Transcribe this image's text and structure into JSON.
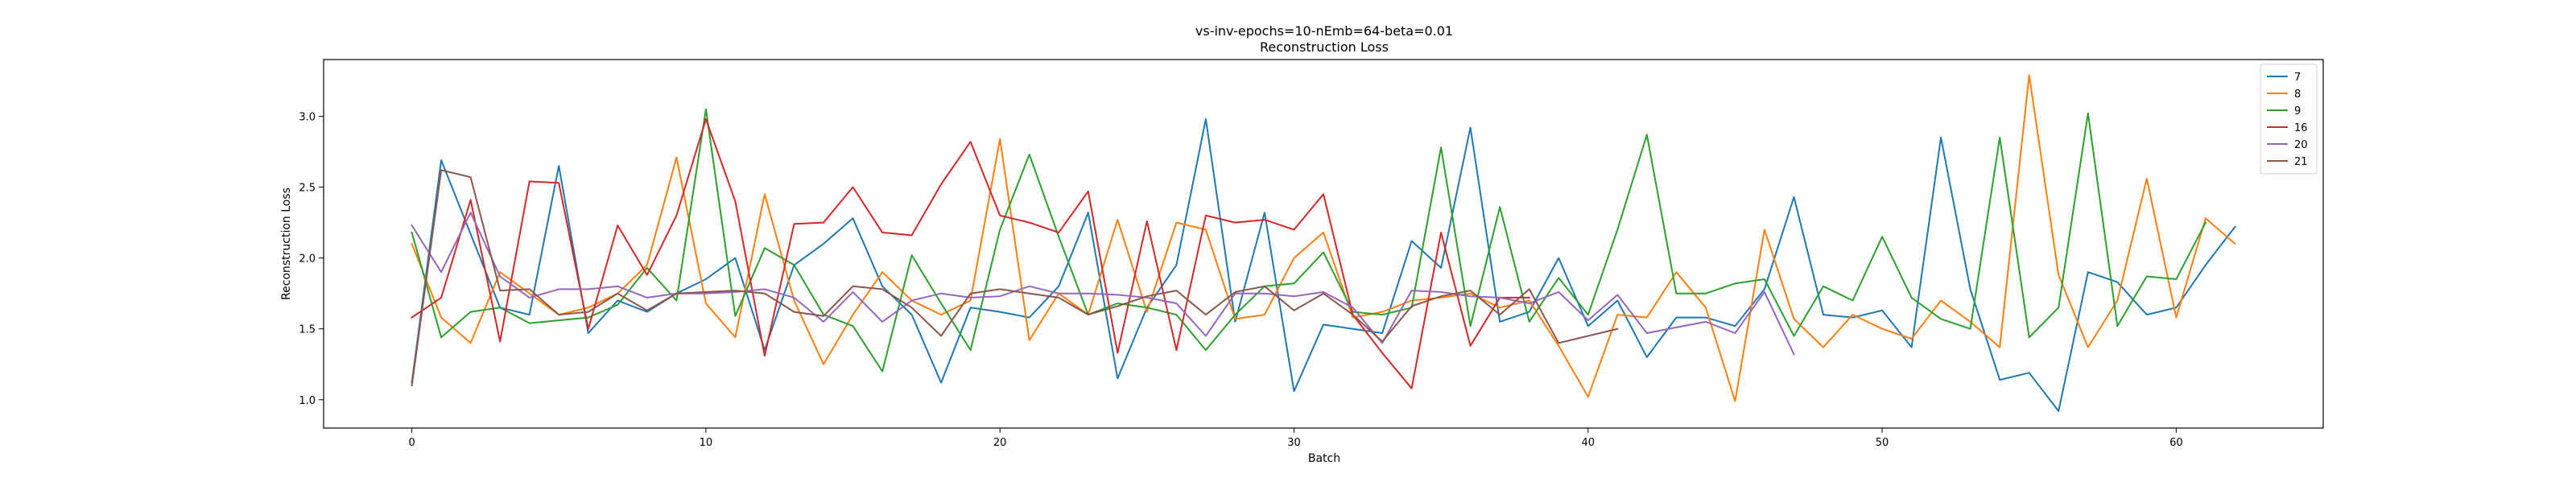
{
  "chart_data": {
    "type": "line",
    "title": "vs-inv-epochs=10-nEmb=64-beta=0.01",
    "subtitle": "Reconstruction Loss",
    "xlabel": "Batch",
    "ylabel": "Reconstruction Loss",
    "xlim": [
      -3,
      65
    ],
    "ylim": [
      0.8,
      3.4
    ],
    "xticks": [
      0,
      10,
      20,
      30,
      40,
      50,
      60
    ],
    "yticks": [
      "1.0",
      "1.5",
      "2.0",
      "2.5",
      "3.0"
    ],
    "grid": false,
    "legend_position": "top-right",
    "series": [
      {
        "name": "7",
        "color": "#1f77b4",
        "values": [
          1.12,
          2.69,
          2.17,
          1.65,
          1.6,
          2.65,
          1.47,
          1.7,
          1.62,
          1.75,
          1.85,
          2.0,
          1.35,
          1.95,
          2.1,
          2.28,
          1.8,
          1.6,
          1.12,
          1.65,
          1.62,
          1.58,
          1.8,
          2.32,
          1.15,
          1.65,
          1.95,
          2.98,
          1.55,
          2.32,
          1.06,
          1.53,
          1.5,
          1.47,
          2.12,
          1.93,
          2.92,
          1.55,
          1.62,
          2.0,
          1.52,
          1.7,
          1.3,
          1.58,
          1.58,
          1.52,
          1.78,
          2.43,
          1.6,
          1.58,
          1.63,
          1.37,
          2.85,
          1.78,
          1.14,
          1.19,
          0.92,
          1.9,
          1.83,
          1.6,
          1.65,
          1.95,
          2.22
        ]
      },
      {
        "name": "8",
        "color": "#ff7f0e",
        "values": [
          2.1,
          1.58,
          1.4,
          1.9,
          1.75,
          1.6,
          1.65,
          1.75,
          1.95,
          2.71,
          1.68,
          1.44,
          2.45,
          1.7,
          1.25,
          1.6,
          1.9,
          1.7,
          1.6,
          1.7,
          2.84,
          1.42,
          1.75,
          1.6,
          2.27,
          1.62,
          2.25,
          2.2,
          1.57,
          1.6,
          2.0,
          2.18,
          1.58,
          1.62,
          1.7,
          1.72,
          1.75,
          1.65,
          1.7,
          1.38,
          1.02,
          1.6,
          1.58,
          1.9,
          1.65,
          0.99,
          2.2,
          1.57,
          1.37,
          1.6,
          1.5,
          1.43,
          1.7,
          1.55,
          1.37,
          3.29,
          1.88,
          1.37,
          1.7,
          2.56,
          1.58,
          2.28,
          2.1
        ]
      },
      {
        "name": "9",
        "color": "#2ca02c",
        "values": [
          2.18,
          1.44,
          1.62,
          1.65,
          1.54,
          1.56,
          1.58,
          1.67,
          1.93,
          1.7,
          3.05,
          1.59,
          2.07,
          1.95,
          1.6,
          1.52,
          1.2,
          2.02,
          1.68,
          1.35,
          2.2,
          2.73,
          2.15,
          1.6,
          1.68,
          1.65,
          1.6,
          1.35,
          1.6,
          1.8,
          1.82,
          2.04,
          1.62,
          1.6,
          1.65,
          2.78,
          1.52,
          2.36,
          1.55,
          1.86,
          1.6,
          2.2,
          2.87,
          1.75,
          1.75,
          1.82,
          1.85,
          1.45,
          1.8,
          1.7,
          2.15,
          1.72,
          1.57,
          1.5,
          2.85,
          1.44,
          1.65,
          3.02,
          1.52,
          1.87,
          1.85,
          2.25
        ]
      },
      {
        "name": "16",
        "color": "#d62728",
        "values": [
          1.58,
          1.72,
          2.41,
          1.41,
          2.54,
          2.53,
          1.5,
          2.23,
          1.88,
          2.3,
          2.98,
          2.4,
          1.31,
          2.24,
          2.25,
          2.5,
          2.18,
          2.16,
          2.52,
          2.82,
          2.3,
          2.25,
          2.18,
          2.47,
          1.33,
          2.26,
          1.35,
          2.3,
          2.25,
          2.27,
          2.2,
          2.45,
          1.6,
          1.33,
          1.08,
          2.18,
          1.38,
          1.72,
          1.72
        ]
      },
      {
        "name": "20",
        "color": "#9467bd",
        "values": [
          2.23,
          1.9,
          2.32,
          1.87,
          1.72,
          1.78,
          1.78,
          1.8,
          1.72,
          1.75,
          1.75,
          1.76,
          1.78,
          1.72,
          1.55,
          1.76,
          1.55,
          1.7,
          1.75,
          1.72,
          1.73,
          1.8,
          1.75,
          1.75,
          1.74,
          1.72,
          1.68,
          1.45,
          1.75,
          1.75,
          1.73,
          1.76,
          1.65,
          1.4,
          1.77,
          1.76,
          1.73,
          1.72,
          1.68,
          1.76,
          1.56,
          1.74,
          1.47,
          1.51,
          1.55,
          1.47,
          1.76,
          1.32
        ]
      },
      {
        "name": "21",
        "color": "#8c564b",
        "values": [
          1.1,
          2.62,
          2.57,
          1.77,
          1.78,
          1.6,
          1.62,
          1.75,
          1.63,
          1.75,
          1.76,
          1.77,
          1.75,
          1.62,
          1.59,
          1.8,
          1.78,
          1.65,
          1.45,
          1.75,
          1.78,
          1.75,
          1.72,
          1.6,
          1.66,
          1.73,
          1.77,
          1.6,
          1.76,
          1.8,
          1.63,
          1.75,
          1.6,
          1.41,
          1.66,
          1.73,
          1.77,
          1.6,
          1.78,
          1.4,
          1.45,
          1.5
        ]
      }
    ]
  }
}
